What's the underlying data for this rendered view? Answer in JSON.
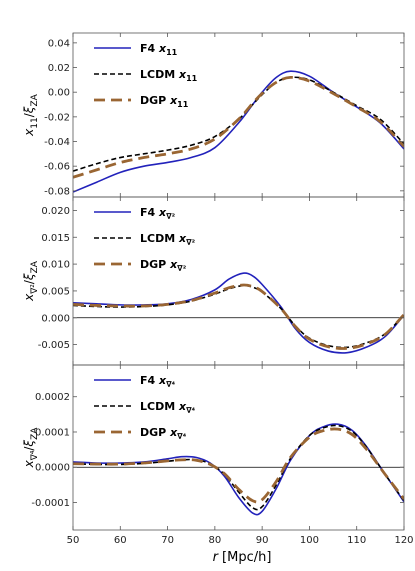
{
  "chart_data": {
    "type": "line",
    "xlabel": "r [Mpc/h]",
    "xlim": [
      50,
      120
    ],
    "x_ticks": [
      "50",
      "60",
      "70",
      "80",
      "90",
      "100",
      "110",
      "120"
    ],
    "colors": {
      "F4": "#2222bb",
      "LCDM": "#000000",
      "DGP": "#9a6633"
    },
    "panels": [
      {
        "ylabel": "x11/ξZA",
        "ylabel_main": "x",
        "ylabel_sub": "11",
        "ylim": [
          -0.085,
          0.048
        ],
        "y_ticks": [
          -0.08,
          -0.06,
          -0.04,
          -0.02,
          0.0,
          0.02,
          0.04
        ],
        "y_tick_labels": [
          "-0.08",
          "-0.06",
          "-0.04",
          "-0.02",
          "0.00",
          "0.02",
          "0.04"
        ],
        "zero_line": false,
        "legend": [
          "F4 x11",
          "LCDM x11",
          "DGP x11"
        ],
        "legend_sub": "11",
        "x": [
          50,
          55,
          60,
          65,
          70,
          75,
          80,
          85,
          88,
          90,
          93,
          96,
          100,
          105,
          110,
          115,
          120
        ],
        "series": [
          {
            "name": "F4",
            "values": [
              -0.081,
              -0.073,
              -0.065,
              -0.06,
              -0.057,
              -0.053,
              -0.045,
              -0.025,
              -0.01,
              0.0,
              0.012,
              0.017,
              0.013,
              0.0,
              -0.012,
              -0.025,
              -0.046
            ]
          },
          {
            "name": "LCDM",
            "values": [
              -0.064,
              -0.058,
              -0.053,
              -0.05,
              -0.047,
              -0.043,
              -0.036,
              -0.022,
              -0.01,
              -0.002,
              0.008,
              0.012,
              0.01,
              0.0,
              -0.011,
              -0.022,
              -0.042
            ]
          },
          {
            "name": "DGP",
            "values": [
              -0.069,
              -0.063,
              -0.057,
              -0.053,
              -0.05,
              -0.046,
              -0.038,
              -0.022,
              -0.009,
              -0.001,
              0.008,
              0.012,
              0.009,
              -0.001,
              -0.012,
              -0.024,
              -0.044
            ]
          }
        ]
      },
      {
        "ylabel": "x∇²/ξZA",
        "ylabel_main": "x",
        "ylabel_sub": "∇²",
        "ylim": [
          -0.0088,
          0.0225
        ],
        "y_ticks": [
          -0.005,
          0.0,
          0.005,
          0.01,
          0.015,
          0.02
        ],
        "y_tick_labels": [
          "-0.005",
          "0.000",
          "0.005",
          "0.010",
          "0.015",
          "0.020"
        ],
        "zero_line": true,
        "legend": [
          "F4 x∇²",
          "LCDM x∇²",
          "DGP x∇²"
        ],
        "legend_sub": "∇²",
        "x": [
          50,
          55,
          60,
          65,
          70,
          75,
          80,
          83,
          86,
          88,
          90,
          94,
          97,
          100,
          104,
          108,
          112,
          116,
          120
        ],
        "series": [
          {
            "name": "F4",
            "values": [
              0.0028,
              0.0026,
              0.0024,
              0.0024,
              0.0026,
              0.0034,
              0.0052,
              0.0072,
              0.0083,
              0.0078,
              0.0062,
              0.002,
              -0.002,
              -0.0046,
              -0.0062,
              -0.0065,
              -0.0055,
              -0.0035,
              0.0005
            ]
          },
          {
            "name": "LCDM",
            "values": [
              0.0023,
              0.0021,
              0.002,
              0.0021,
              0.0024,
              0.0031,
              0.0044,
              0.0054,
              0.006,
              0.0057,
              0.0048,
              0.0017,
              -0.0015,
              -0.0038,
              -0.0052,
              -0.0055,
              -0.0047,
              -0.003,
              0.0005
            ]
          },
          {
            "name": "DGP",
            "values": [
              0.0025,
              0.0023,
              0.0022,
              0.0022,
              0.0025,
              0.0032,
              0.0046,
              0.0056,
              0.0061,
              0.0058,
              0.0049,
              0.0017,
              -0.0016,
              -0.004,
              -0.0054,
              -0.0057,
              -0.0049,
              -0.0031,
              0.0006
            ]
          }
        ]
      },
      {
        "ylabel": "x∇⁴/ξZA",
        "ylabel_main": "x",
        "ylabel_sub": "∇⁴",
        "ylim": [
          -0.000178,
          0.00029
        ],
        "y_ticks": [
          -0.0001,
          0.0,
          0.0001,
          0.0002
        ],
        "y_tick_labels": [
          "-0.0001",
          "0.0000",
          "0.0001",
          "0.0002"
        ],
        "zero_line": true,
        "legend": [
          "F4 x∇⁴",
          "LCDM x∇⁴",
          "DGP x∇⁴"
        ],
        "legend_sub": "∇⁴",
        "x": [
          50,
          55,
          60,
          65,
          70,
          73,
          76,
          79,
          82,
          85,
          88,
          90,
          93,
          96,
          100,
          103,
          106,
          109,
          112,
          116,
          120
        ],
        "series": [
          {
            "name": "F4",
            "values": [
              1.5e-05,
              1.2e-05,
              1.2e-05,
              1.5e-05,
              2.4e-05,
              3e-05,
              2.8e-05,
              1.2e-05,
              -2.5e-05,
              -8.5e-05,
              -0.00013,
              -0.000125,
              -6e-05,
              2e-05,
              9e-05,
              0.000115,
              0.000122,
              0.000105,
              6e-05,
              -2e-05,
              -9.8e-05
            ]
          },
          {
            "name": "LCDM",
            "values": [
              1e-05,
              8e-06,
              8e-06,
              1.1e-05,
              1.7e-05,
              2.1e-05,
              2.1e-05,
              1e-05,
              -2e-05,
              -7e-05,
              -0.000115,
              -0.000112,
              -5e-05,
              2.5e-05,
              9e-05,
              0.000112,
              0.000118,
              0.000102,
              5.8e-05,
              -2e-05,
              -9.5e-05
            ]
          },
          {
            "name": "DGP",
            "values": [
              1e-05,
              9e-06,
              9e-06,
              1.2e-05,
              1.8e-05,
              2.1e-05,
              2e-05,
              8e-06,
              -1.8e-05,
              -6.2e-05,
              -9.5e-05,
              -9.2e-05,
              -4e-05,
              2.8e-05,
              8.5e-05,
              0.000104,
              0.000108,
              9.3e-05,
              5.2e-05,
              -2e-05,
              -9e-05
            ]
          }
        ]
      }
    ]
  }
}
